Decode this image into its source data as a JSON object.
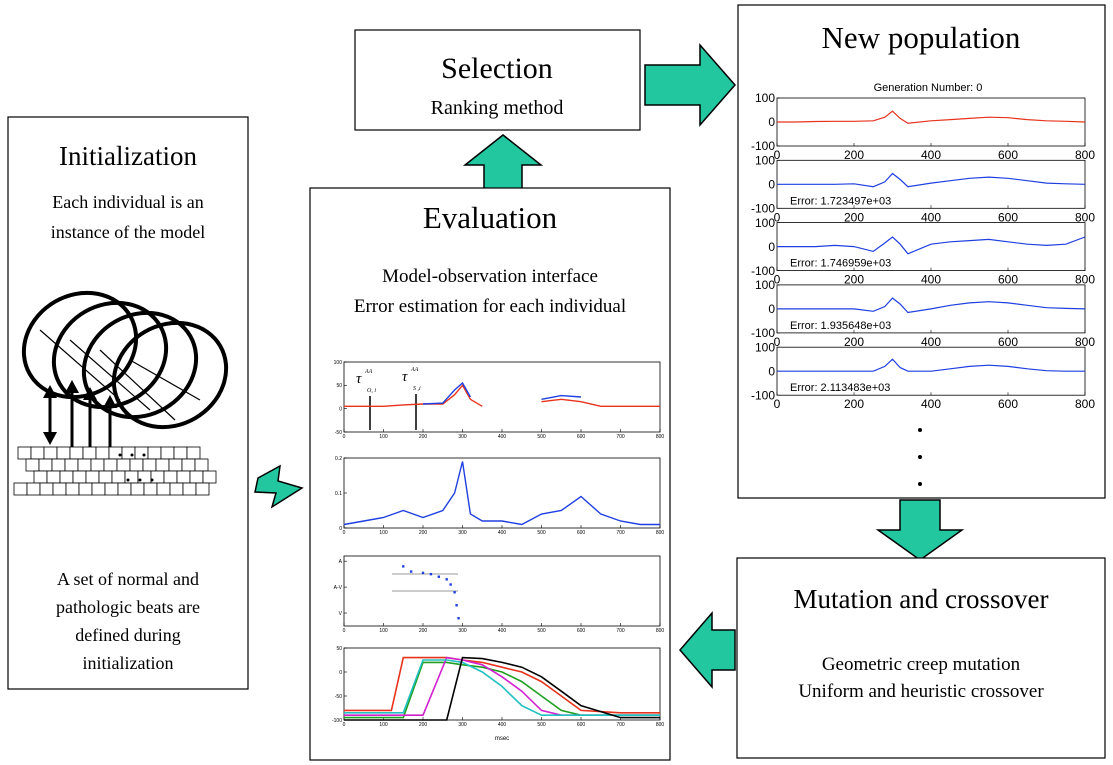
{
  "selection": {
    "title": "Selection",
    "subtitle": "Ranking method"
  },
  "initialization": {
    "title": "Initialization",
    "top_lines": [
      "Each individual is an",
      "instance of the model"
    ],
    "bottom_lines": [
      "A set of normal and",
      "pathologic beats are",
      "defined during",
      "initialization"
    ]
  },
  "evaluation": {
    "title": "Evaluation",
    "lines": [
      "Model-observation interface",
      "Error estimation for each individual"
    ],
    "annotations": [
      {
        "symbol": "τ",
        "sup": "AA",
        "sub": "O, i"
      },
      {
        "symbol": "τ",
        "sup": "AA",
        "sub": "S ,i"
      }
    ],
    "xlim": [
      0,
      800
    ],
    "xticks": [
      0,
      100,
      200,
      300,
      400,
      500,
      600,
      700,
      800
    ],
    "xlabel": "msec",
    "plots": [
      {
        "ylim": [
          -50,
          100
        ],
        "yticks": [
          -50,
          0,
          50,
          100
        ],
        "x": [
          0,
          50,
          100,
          150,
          200,
          250,
          280,
          300,
          320,
          350,
          400,
          450,
          500,
          550,
          600,
          650,
          700,
          750,
          800
        ],
        "series": [
          {
            "color": "#e8331c",
            "values": [
              5,
              5,
              5,
              8,
              10,
              10,
              30,
              50,
              20,
              5,
              null,
              null,
              15,
              20,
              15,
              5,
              5,
              5,
              5
            ]
          },
          {
            "color": "#1f3fe0",
            "values": [
              null,
              null,
              null,
              null,
              10,
              12,
              40,
              55,
              25,
              null,
              null,
              null,
              20,
              28,
              25,
              null,
              null,
              null,
              null
            ]
          }
        ]
      },
      {
        "ylim": [
          0,
          0.2
        ],
        "yticks": [
          0,
          0.1,
          0.2
        ],
        "x": [
          0,
          50,
          100,
          150,
          200,
          250,
          280,
          300,
          320,
          350,
          400,
          450,
          500,
          550,
          600,
          650,
          700,
          750,
          800
        ],
        "series": [
          {
            "color": "#1f3fe0",
            "values": [
              0.01,
              0.02,
              0.03,
              0.05,
              0.03,
              0.05,
              0.1,
              0.19,
              0.04,
              0.02,
              0.02,
              0.01,
              0.04,
              0.05,
              0.09,
              0.04,
              0.02,
              0.01,
              0.01
            ]
          }
        ]
      },
      {
        "ylim": [
          -0.5,
          2.2
        ],
        "yticks": [
          {
            "value": 0,
            "label": "V"
          },
          {
            "value": 1,
            "label": "A-V"
          },
          {
            "value": 2,
            "label": "A"
          }
        ],
        "x": [
          150,
          170,
          200,
          220,
          240,
          260,
          270,
          280,
          285,
          290
        ],
        "dots": true,
        "series": [
          {
            "color": "#1f3fe0",
            "values": [
              1.8,
              1.6,
              1.55,
              1.5,
              1.4,
              1.3,
              1.1,
              0.8,
              0.3,
              -0.2
            ]
          }
        ]
      },
      {
        "ylim": [
          -100,
          50
        ],
        "yticks": [
          -100,
          -50,
          0,
          50
        ],
        "x": [
          0,
          120,
          150,
          200,
          260,
          300,
          350,
          400,
          450,
          500,
          550,
          600,
          700,
          800
        ],
        "series": [
          {
            "color": "#e8331c",
            "values": [
              -80,
              -80,
              30,
              30,
              30,
              25,
              20,
              10,
              0,
              -20,
              -50,
              -80,
              -85,
              -85
            ]
          },
          {
            "color": "#20a020",
            "values": [
              -95,
              -95,
              -95,
              20,
              20,
              15,
              10,
              0,
              -20,
              -50,
              -80,
              -90,
              -90,
              -90
            ]
          },
          {
            "color": "#d020d0",
            "values": [
              -90,
              -90,
              -90,
              -90,
              30,
              25,
              15,
              -10,
              -40,
              -80,
              -90,
              -90,
              -90,
              -90
            ]
          },
          {
            "color": "#20c0c0",
            "values": [
              -85,
              -85,
              -85,
              25,
              25,
              20,
              0,
              -30,
              -70,
              -90,
              -90,
              -90,
              -90,
              -90
            ]
          },
          {
            "color": "#000000",
            "values": [
              -100,
              -100,
              -100,
              -100,
              -100,
              30,
              28,
              20,
              10,
              -10,
              -40,
              -70,
              -95,
              -95
            ]
          }
        ]
      }
    ]
  },
  "new_population": {
    "title": "New population",
    "plot_title": "Generation Number: 0",
    "x": [
      0,
      50,
      100,
      150,
      200,
      250,
      280,
      300,
      320,
      340,
      400,
      450,
      500,
      550,
      600,
      650,
      700,
      750,
      800
    ],
    "xlim": [
      0,
      800
    ],
    "ylim": [
      -100,
      100
    ],
    "xticks": [
      0,
      200,
      400,
      600,
      800
    ],
    "yticks": [
      -100,
      0,
      100
    ],
    "plots": [
      {
        "color": "#e8331c",
        "values": [
          0,
          0,
          2,
          3,
          3,
          5,
          20,
          45,
          15,
          -5,
          5,
          10,
          15,
          20,
          18,
          10,
          5,
          3,
          0
        ]
      },
      {
        "color": "#1f3fe0",
        "label": "Error: 1.723497e+03",
        "values": [
          0,
          0,
          0,
          0,
          2,
          -10,
          10,
          45,
          20,
          -10,
          5,
          15,
          25,
          30,
          25,
          15,
          5,
          2,
          0
        ]
      },
      {
        "color": "#1f3fe0",
        "label": "Error: 1.746959e+03",
        "values": [
          0,
          0,
          0,
          5,
          0,
          -20,
          15,
          40,
          10,
          -30,
          10,
          20,
          25,
          30,
          20,
          10,
          5,
          10,
          40
        ]
      },
      {
        "color": "#1f3fe0",
        "label": "Error: 1.935648e+03",
        "values": [
          0,
          0,
          0,
          0,
          0,
          -10,
          10,
          45,
          20,
          -15,
          0,
          15,
          25,
          30,
          25,
          15,
          5,
          2,
          0
        ]
      },
      {
        "color": "#1f3fe0",
        "label": "Error: 2.113483e+03",
        "values": [
          0,
          0,
          0,
          0,
          0,
          0,
          20,
          50,
          15,
          0,
          0,
          10,
          20,
          25,
          20,
          10,
          2,
          0,
          0
        ]
      }
    ]
  },
  "mutation": {
    "title": "Mutation and crossover",
    "lines": [
      "Geometric creep mutation",
      "Uniform and heuristic crossover"
    ]
  }
}
